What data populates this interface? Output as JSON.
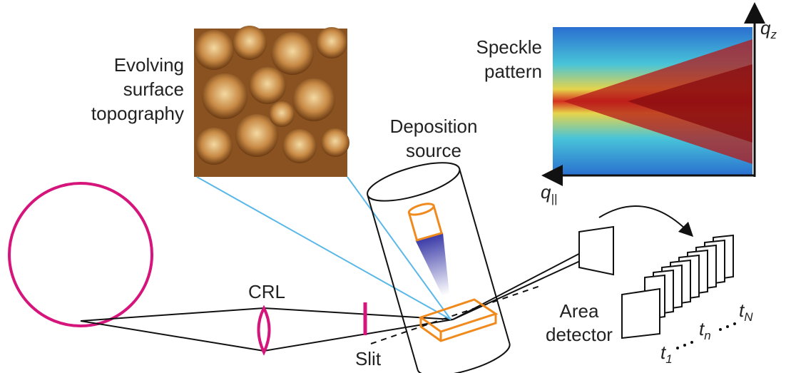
{
  "labels": {
    "surface": [
      "Evolving",
      "surface",
      "topography"
    ],
    "source": [
      "Deposition",
      "source"
    ],
    "speckle": [
      "Speckle",
      "pattern"
    ],
    "crl": "CRL",
    "slit": "Slit",
    "detector": [
      "Area",
      "detector"
    ]
  },
  "axes": {
    "qz": {
      "symbol": "q",
      "subscript": "z"
    },
    "qpar": {
      "symbol": "q",
      "subscript": "||"
    }
  },
  "frames": {
    "first": {
      "symbol": "t",
      "subscript": "1"
    },
    "middle": {
      "symbol": "t",
      "subscript": "n"
    },
    "last": {
      "symbol": "t",
      "subscript": "N"
    }
  }
}
